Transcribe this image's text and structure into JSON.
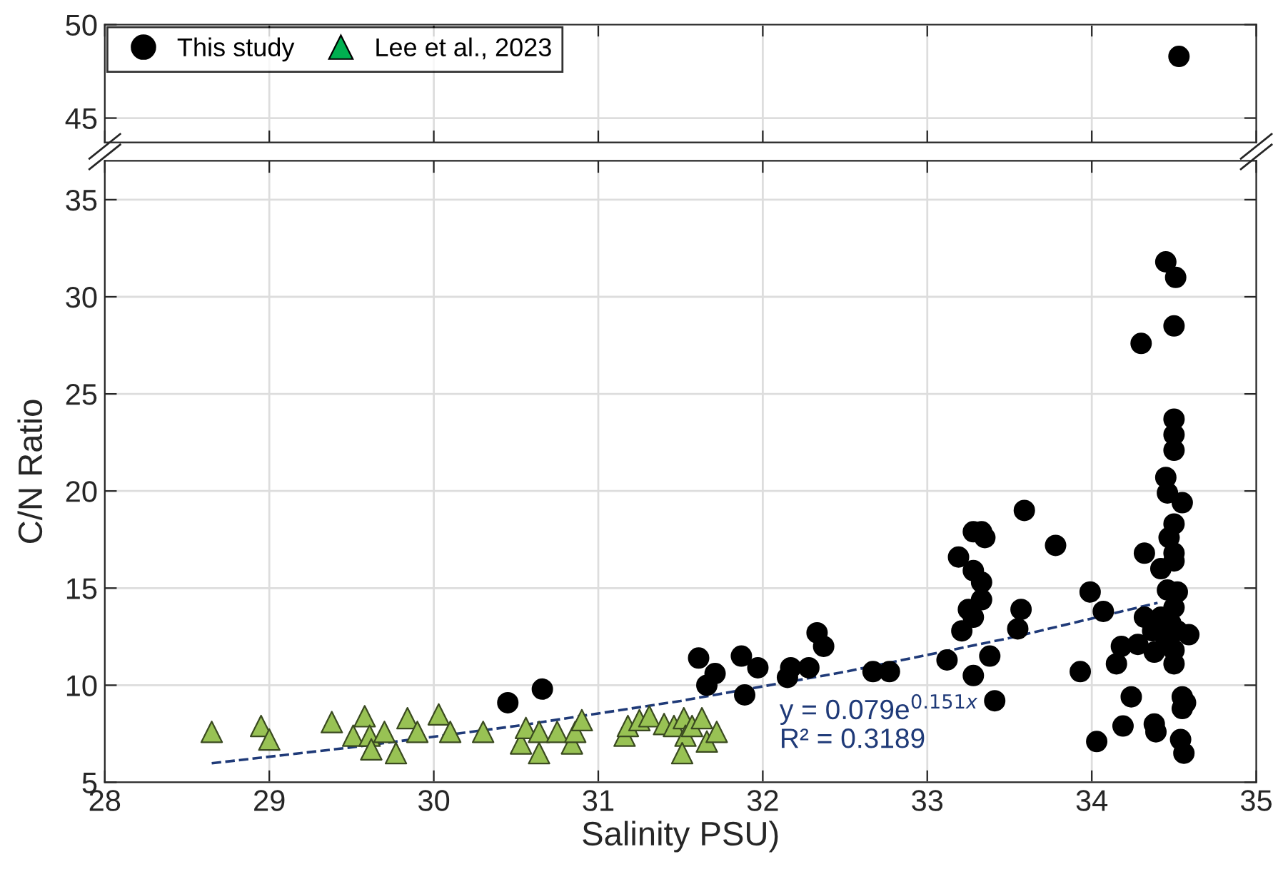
{
  "chart_data": [
    {
      "type": "scatter",
      "ylim": [
        43.7,
        50
      ],
      "yticks": [
        45,
        50
      ],
      "xlim": [
        28,
        35
      ],
      "xticks": [
        28,
        29,
        30,
        31,
        32,
        33,
        34,
        35
      ],
      "tick_labels": "y",
      "grid": true,
      "legend": "top left",
      "series": [
        {
          "name": "This study",
          "color": "#000000",
          "marker": "circle",
          "x": [
            34.53
          ],
          "values": [
            48.3
          ]
        },
        {
          "name": "Lee et al., 2023",
          "color": "#00b050",
          "marker": "triangle"
        }
      ]
    },
    {
      "type": "scatter",
      "ylim": [
        5,
        37
      ],
      "yticks": [
        5,
        10,
        15,
        20,
        25,
        30,
        35
      ],
      "xlim": [
        28,
        35
      ],
      "xticks": [
        28,
        29,
        30,
        31,
        32,
        33,
        34,
        35
      ],
      "grid": true,
      "xlabel": "Salinity PSU)",
      "ylabel": "C/N Ratio",
      "annotations": [
        "y = 0.079e$^{0.151x}$",
        "R² = 0.3189"
      ],
      "series": [
        {
          "type": "line",
          "color": "#1f3a78",
          "line_style": "dashed",
          "marker": "none",
          "x": [
            28.65,
            29.5,
            30.5,
            31.5,
            32.5,
            33.5,
            34.4
          ],
          "values": [
            5.98,
            6.8,
            7.9,
            9.19,
            10.69,
            12.43,
            14.24
          ]
        },
        {
          "color": "#98c254",
          "marker": "triangle",
          "x": [
            28.65,
            28.95,
            29.0,
            29.38,
            29.58,
            29.51,
            29.61,
            29.7,
            29.62,
            29.77,
            29.84,
            29.9,
            30.03,
            30.1,
            30.3,
            30.53,
            30.56,
            30.64,
            30.64,
            30.75,
            30.84,
            30.86,
            30.9,
            31.16,
            31.18,
            31.25,
            31.31,
            31.4,
            31.46,
            31.52,
            31.53,
            31.51,
            31.57,
            31.63,
            31.66,
            31.72
          ],
          "values": [
            7.6,
            7.9,
            7.2,
            8.1,
            8.4,
            7.4,
            7.4,
            7.6,
            6.7,
            6.5,
            8.3,
            7.6,
            8.5,
            7.6,
            7.6,
            7.0,
            7.8,
            7.6,
            6.5,
            7.6,
            7.0,
            7.6,
            8.2,
            7.4,
            7.9,
            8.2,
            8.4,
            8.0,
            7.9,
            8.3,
            7.4,
            6.5,
            7.9,
            8.3,
            7.1,
            7.6
          ]
        },
        {
          "color": "#000000",
          "marker": "circle",
          "x": [
            30.45,
            30.66,
            31.61,
            31.71,
            31.66,
            31.87,
            31.97,
            31.89,
            32.17,
            32.15,
            32.28,
            32.33,
            32.37,
            32.67,
            32.77,
            33.12,
            33.19,
            33.28,
            33.33,
            33.35,
            33.28,
            33.33,
            33.33,
            33.25,
            33.28,
            33.21,
            33.28,
            33.38,
            33.41,
            33.59,
            33.57,
            33.55,
            33.78,
            33.93,
            33.99,
            34.07,
            34.03,
            34.15,
            34.18,
            34.24,
            34.19,
            34.3,
            34.32,
            34.28,
            34.32,
            34.38,
            34.39,
            34.38,
            34.45,
            34.51,
            34.5,
            34.5,
            34.5,
            34.5,
            34.45,
            34.46,
            34.55,
            34.5,
            34.47,
            34.42,
            34.5,
            34.5,
            34.46,
            34.52,
            34.5,
            34.42,
            34.48,
            34.37,
            34.52,
            34.59,
            34.45,
            34.5,
            34.5,
            34.55,
            34.57,
            34.55,
            34.54,
            34.56
          ],
          "values": [
            9.1,
            9.8,
            11.4,
            10.6,
            10.0,
            11.5,
            10.9,
            9.5,
            10.9,
            10.4,
            10.9,
            12.7,
            12.0,
            10.7,
            10.7,
            11.3,
            16.6,
            17.9,
            17.9,
            17.6,
            15.9,
            15.3,
            14.4,
            13.9,
            13.5,
            12.8,
            10.5,
            11.5,
            9.2,
            19.0,
            13.9,
            12.9,
            17.2,
            10.7,
            14.8,
            13.8,
            7.1,
            11.1,
            12.0,
            9.4,
            7.9,
            27.6,
            16.8,
            12.1,
            13.5,
            8.0,
            7.6,
            11.7,
            31.8,
            31.0,
            28.5,
            23.7,
            22.9,
            22.1,
            20.7,
            19.9,
            19.4,
            18.3,
            17.6,
            16.0,
            16.8,
            16.4,
            14.9,
            14.8,
            14.0,
            13.5,
            13.2,
            12.8,
            12.8,
            12.6,
            12.4,
            11.8,
            11.1,
            9.4,
            9.1,
            8.8,
            7.2,
            6.5
          ]
        }
      ]
    }
  ]
}
